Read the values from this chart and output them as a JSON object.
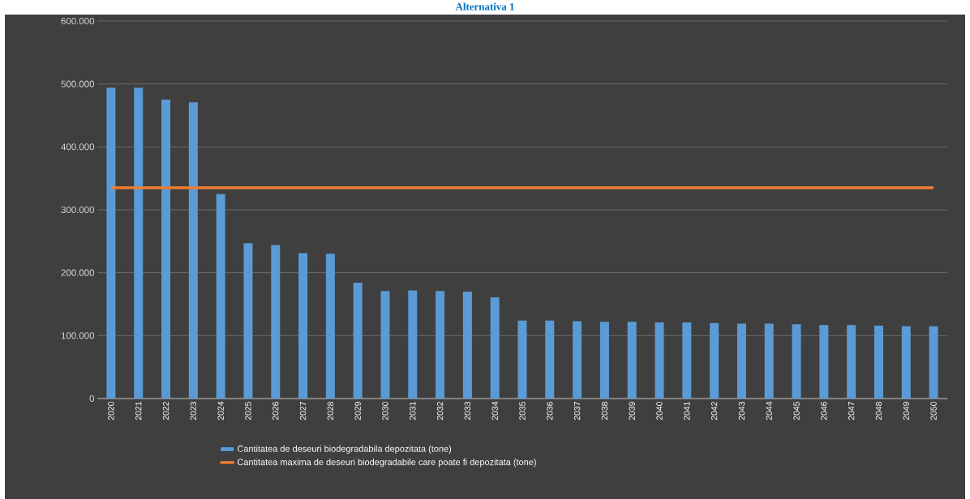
{
  "chart_data": {
    "type": "bar",
    "title": "Alternativa 1",
    "categories": [
      "2020",
      "2021",
      "2022",
      "2023",
      "2024",
      "2025",
      "2026",
      "2027",
      "2028",
      "2029",
      "2030",
      "2031",
      "2032",
      "2033",
      "2034",
      "2035",
      "2036",
      "2037",
      "2038",
      "2039",
      "2040",
      "2041",
      "2042",
      "2043",
      "2044",
      "2045",
      "2046",
      "2047",
      "2048",
      "2049",
      "2050"
    ],
    "series": [
      {
        "name": "Cantitatea de deseuri biodegradabila depozitata (tone)",
        "color": "#5b9bd5",
        "values": [
          494000,
          494000,
          475000,
          471000,
          325000,
          247000,
          244000,
          231000,
          230000,
          184000,
          171000,
          172000,
          171000,
          170000,
          161000,
          124000,
          124000,
          123000,
          122000,
          122000,
          121000,
          121000,
          120000,
          119000,
          119000,
          118000,
          117000,
          117000,
          116000,
          115000,
          115000
        ]
      },
      {
        "name": "Cantitatea maxima de deseuri biodegradabile care poate fi depozitata (tone)",
        "type": "line",
        "color": "#ed7d31",
        "values": [
          335000,
          335000,
          335000,
          335000,
          335000,
          335000,
          335000,
          335000,
          335000,
          335000,
          335000,
          335000,
          335000,
          335000,
          335000,
          335000,
          335000,
          335000,
          335000,
          335000,
          335000,
          335000,
          335000,
          335000,
          335000,
          335000,
          335000,
          335000,
          335000,
          335000,
          335000
        ]
      }
    ],
    "ylim": [
      0,
      600000
    ],
    "yticks": [
      0,
      {
        "value": 100000,
        "label": "100.000"
      },
      {
        "value": 200000,
        "label": "200.000"
      },
      {
        "value": 300000,
        "label": "300.000"
      },
      {
        "value": 400000,
        "label": "400.000"
      },
      {
        "value": 500000,
        "label": "500.000"
      },
      {
        "value": 600000,
        "label": "600.000"
      }
    ],
    "grid": "y",
    "legend": "bottom"
  }
}
